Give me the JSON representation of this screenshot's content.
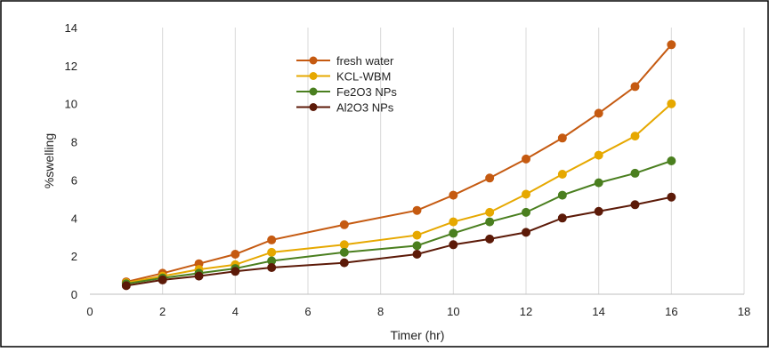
{
  "chart_data": {
    "type": "line",
    "title": "",
    "xlabel": "Timer (hr)",
    "ylabel": "%swelling",
    "xlim": [
      0,
      18
    ],
    "ylim": [
      0,
      14
    ],
    "x_ticks": [
      0,
      2,
      4,
      6,
      8,
      10,
      12,
      14,
      16,
      18
    ],
    "y_ticks": [
      0,
      2,
      4,
      6,
      8,
      10,
      12,
      14
    ],
    "grid": "vertical",
    "legend_position": "top-center",
    "x": [
      1,
      2,
      3,
      4,
      5,
      7,
      9,
      10,
      11,
      12,
      13,
      14,
      15,
      16
    ],
    "series": [
      {
        "name": "fresh water",
        "color": "#c55a11",
        "values": [
          0.65,
          1.1,
          1.6,
          2.1,
          2.85,
          3.65,
          4.4,
          5.2,
          6.1,
          7.1,
          8.2,
          9.5,
          10.9,
          13.1
        ]
      },
      {
        "name": "KCL-WBM",
        "color": "#e6a800",
        "values": [
          0.6,
          0.95,
          1.3,
          1.55,
          2.2,
          2.6,
          3.1,
          3.8,
          4.3,
          5.25,
          6.3,
          7.3,
          8.3,
          10.0
        ]
      },
      {
        "name": "Fe2O3 NPs",
        "color": "#4a7f1f",
        "values": [
          0.55,
          0.85,
          1.1,
          1.35,
          1.75,
          2.2,
          2.55,
          3.2,
          3.8,
          4.3,
          5.2,
          5.85,
          6.35,
          7.0
        ]
      },
      {
        "name": "Al2O3 NPs",
        "color": "#5c1a08",
        "values": [
          0.45,
          0.75,
          0.95,
          1.2,
          1.4,
          1.65,
          2.1,
          2.6,
          2.9,
          3.25,
          4.0,
          4.35,
          4.7,
          5.1
        ]
      }
    ]
  }
}
